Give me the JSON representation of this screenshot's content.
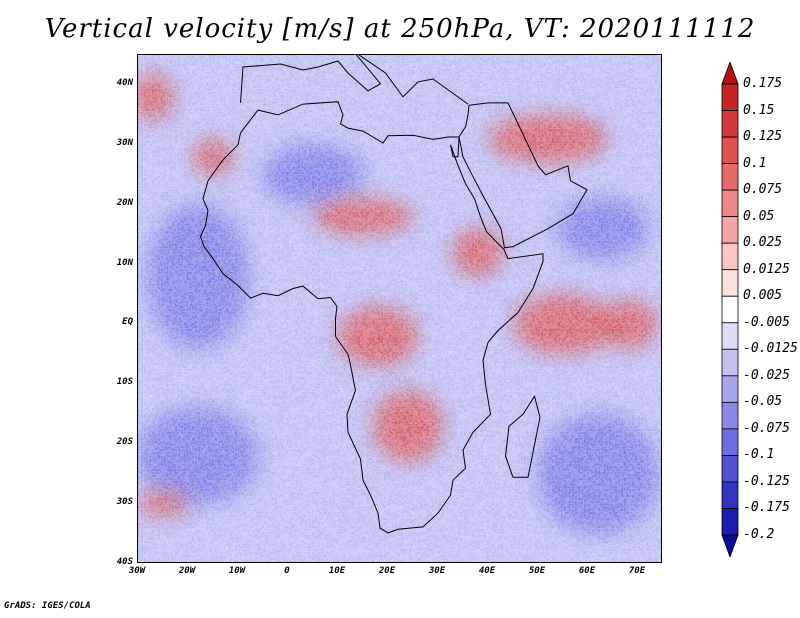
{
  "title": "Vertical velocity [m/s] at 250hPa, VT: 2020111112",
  "credit": "GrADS: IGES/COLA",
  "map": {
    "variable": "vertical velocity",
    "level": "250hPa",
    "lat_range": [
      -40,
      45
    ],
    "lon_range": [
      -30,
      75
    ],
    "lat_labels": [
      {
        "value": 40,
        "text": "40N"
      },
      {
        "value": 30,
        "text": "30N"
      },
      {
        "value": 20,
        "text": "20N"
      },
      {
        "value": 10,
        "text": "10N"
      },
      {
        "value": 0,
        "text": "EQ"
      },
      {
        "value": -10,
        "text": "10S"
      },
      {
        "value": -20,
        "text": "20S"
      },
      {
        "value": -30,
        "text": "30S"
      },
      {
        "value": -40,
        "text": "40S"
      }
    ],
    "lon_labels": [
      {
        "value": -30,
        "text": "30W"
      },
      {
        "value": -20,
        "text": "20W"
      },
      {
        "value": -10,
        "text": "10W"
      },
      {
        "value": 0,
        "text": "0"
      },
      {
        "value": 10,
        "text": "10E"
      },
      {
        "value": 20,
        "text": "20E"
      },
      {
        "value": 30,
        "text": "30E"
      },
      {
        "value": 40,
        "text": "40E"
      },
      {
        "value": 50,
        "text": "50E"
      },
      {
        "value": 60,
        "text": "60E"
      },
      {
        "value": 70,
        "text": "70E"
      }
    ],
    "positive_regions": [
      {
        "name": "western indian ocean",
        "lon": 55,
        "lat": 0,
        "rx": 10,
        "ry": 5
      },
      {
        "name": "arabian sea east",
        "lon": 68,
        "lat": 0,
        "rx": 6,
        "ry": 4
      },
      {
        "name": "southern africa",
        "lon": 24,
        "lat": -17,
        "rx": 7,
        "ry": 6
      },
      {
        "name": "congo basin",
        "lon": 18,
        "lat": -2,
        "rx": 8,
        "ry": 5
      },
      {
        "name": "middle east",
        "lon": 52,
        "lat": 31,
        "rx": 12,
        "ry": 4
      },
      {
        "name": "north atlantic",
        "lon": -27,
        "lat": 38,
        "rx": 4,
        "ry": 4
      },
      {
        "name": "south atlantic",
        "lon": -25,
        "lat": -30,
        "rx": 5,
        "ry": 2
      },
      {
        "name": "sahel",
        "lon": 15,
        "lat": 18,
        "rx": 10,
        "ry": 3
      },
      {
        "name": "east africa",
        "lon": 38,
        "lat": 12,
        "rx": 5,
        "ry": 4
      },
      {
        "name": "west africa coast",
        "lon": -15,
        "lat": 28,
        "rx": 4,
        "ry": 3
      }
    ],
    "negative_regions": [
      {
        "name": "tropical atlantic",
        "lon": -18,
        "lat": 8,
        "rx": 10,
        "ry": 12
      },
      {
        "name": "south atlantic swirl",
        "lon": -18,
        "lat": -22,
        "rx": 12,
        "ry": 8
      },
      {
        "name": "southern indian ocean",
        "lon": 62,
        "lat": -25,
        "rx": 12,
        "ry": 10
      },
      {
        "name": "sahara",
        "lon": 5,
        "lat": 25,
        "rx": 10,
        "ry": 5
      },
      {
        "name": "arabian sea",
        "lon": 63,
        "lat": 16,
        "rx": 9,
        "ry": 5
      }
    ]
  },
  "colorbar": {
    "labels": [
      "0.175",
      "0.15",
      "0.125",
      "0.1",
      "0.075",
      "0.05",
      "0.025",
      "0.0125",
      "0.005",
      "-0.005",
      "-0.0125",
      "-0.025",
      "-0.05",
      "-0.075",
      "-0.1",
      "-0.125",
      "-0.175",
      "-0.2"
    ],
    "colors": [
      "#b21212",
      "#c42424",
      "#d53a3a",
      "#de5252",
      "#e66c6c",
      "#ee8888",
      "#f4a6a6",
      "#f9c4c4",
      "#fde0e0",
      "#ffffff",
      "#dcdcf6",
      "#c2c2f1",
      "#a6a6ec",
      "#8a8ae6",
      "#6d6dde",
      "#5151d4",
      "#3434c4",
      "#1c1cae",
      "#0c0c96"
    ]
  }
}
